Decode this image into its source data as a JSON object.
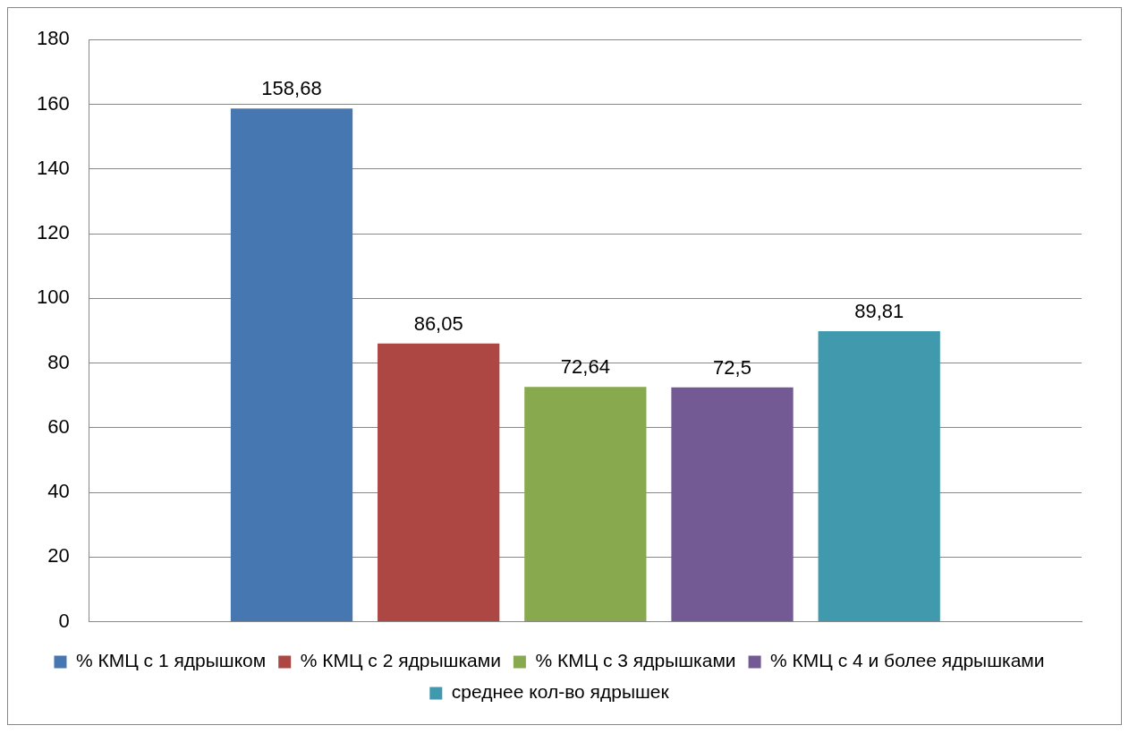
{
  "chart_data": {
    "type": "bar",
    "categories": [
      null
    ],
    "series": [
      {
        "name": "% КМЦ с 1 ядрышком",
        "color": "#4677b1",
        "values": [
          158.68
        ],
        "value_labels": [
          "158,68"
        ]
      },
      {
        "name": "% КМЦ с 2 ядрышками",
        "color": "#ac4744",
        "values": [
          86.05
        ],
        "value_labels": [
          "86,05"
        ]
      },
      {
        "name": "% КМЦ с 3 ядрышками",
        "color": "#88a94e",
        "values": [
          72.64
        ],
        "value_labels": [
          "72,64"
        ]
      },
      {
        "name": "% КМЦ с 4 и более ядрышками",
        "color": "#735a94",
        "values": [
          72.5
        ],
        "value_labels": [
          "72,5"
        ]
      },
      {
        "name": "среднее кол-во ядрышек",
        "color": "#4199ae",
        "values": [
          89.81
        ],
        "value_labels": [
          "89,81"
        ]
      }
    ],
    "ylim": [
      0,
      180
    ],
    "yticks": [
      0,
      20,
      40,
      60,
      80,
      100,
      120,
      140,
      160,
      180
    ],
    "grid": "y",
    "legend": "bottom"
  }
}
